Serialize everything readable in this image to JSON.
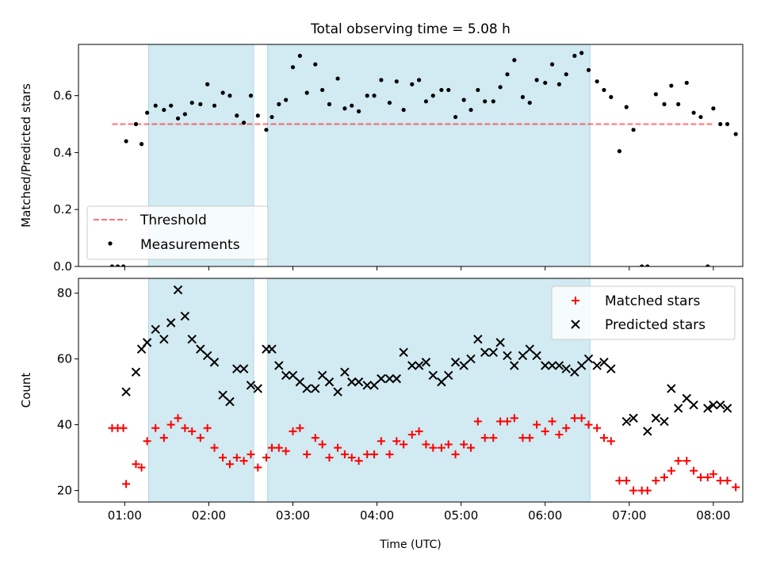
{
  "title": "Total observing time = 5.08 h",
  "xlabel": "Time (UTC)",
  "x_tick_labels": [
    "01:00",
    "02:00",
    "03:00",
    "04:00",
    "05:00",
    "06:00",
    "07:00",
    "08:00"
  ],
  "colors": {
    "shade": "#add8e6",
    "threshold": "#ff0000",
    "measurements": "#000000",
    "matched": "#ff0000",
    "predicted": "#000000"
  },
  "chart_data": [
    {
      "type": "scatter",
      "ylabel": "Matched/Predicted stars",
      "xlim": [
        "00:27",
        "08:21"
      ],
      "ylim": [
        0.0,
        0.78
      ],
      "yticks": [
        0.0,
        0.2,
        0.4,
        0.6
      ],
      "y_tick_labels": [
        "0.0",
        "0.2",
        "0.4",
        "0.6"
      ],
      "shaded_intervals": [
        [
          "01:17",
          "02:32"
        ],
        [
          "02:42",
          "06:32"
        ]
      ],
      "legend_loc": "lower left",
      "threshold": {
        "name": "Threshold",
        "value": 0.5,
        "x_range": [
          "00:51",
          "08:00"
        ],
        "style": "dashed"
      },
      "series": [
        {
          "name": "Measurements",
          "marker": "dot",
          "points": [
            [
              "00:51",
              0.0
            ],
            [
              "00:55",
              0.0
            ],
            [
              "00:59",
              0.0
            ],
            [
              "01:01",
              0.44
            ],
            [
              "01:08",
              0.5
            ],
            [
              "01:12",
              0.43
            ],
            [
              "01:16",
              0.54
            ],
            [
              "01:22",
              0.565
            ],
            [
              "01:28",
              0.55
            ],
            [
              "01:33",
              0.565
            ],
            [
              "01:38",
              0.52
            ],
            [
              "01:43",
              0.535
            ],
            [
              "01:48",
              0.575
            ],
            [
              "01:54",
              0.57
            ],
            [
              "01:59",
              0.64
            ],
            [
              "02:04",
              0.565
            ],
            [
              "02:10",
              0.61
            ],
            [
              "02:15",
              0.6
            ],
            [
              "02:20",
              0.53
            ],
            [
              "02:25",
              0.505
            ],
            [
              "02:30",
              0.6
            ],
            [
              "02:35",
              0.53
            ],
            [
              "02:41",
              0.48
            ],
            [
              "02:45",
              0.525
            ],
            [
              "02:50",
              0.57
            ],
            [
              "02:55",
              0.585
            ],
            [
              "03:00",
              0.7
            ],
            [
              "03:05",
              0.74
            ],
            [
              "03:10",
              0.61
            ],
            [
              "03:16",
              0.71
            ],
            [
              "03:21",
              0.62
            ],
            [
              "03:26",
              0.57
            ],
            [
              "03:32",
              0.66
            ],
            [
              "03:37",
              0.555
            ],
            [
              "03:42",
              0.565
            ],
            [
              "03:47",
              0.545
            ],
            [
              "03:53",
              0.6
            ],
            [
              "03:58",
              0.6
            ],
            [
              "04:03",
              0.655
            ],
            [
              "04:09",
              0.575
            ],
            [
              "04:14",
              0.65
            ],
            [
              "04:19",
              0.55
            ],
            [
              "04:25",
              0.64
            ],
            [
              "04:30",
              0.655
            ],
            [
              "04:35",
              0.58
            ],
            [
              "04:40",
              0.6
            ],
            [
              "04:46",
              0.62
            ],
            [
              "04:51",
              0.62
            ],
            [
              "04:56",
              0.525
            ],
            [
              "05:02",
              0.585
            ],
            [
              "05:07",
              0.55
            ],
            [
              "05:12",
              0.62
            ],
            [
              "05:17",
              0.58
            ],
            [
              "05:23",
              0.58
            ],
            [
              "05:28",
              0.63
            ],
            [
              "05:33",
              0.675
            ],
            [
              "05:38",
              0.725
            ],
            [
              "05:44",
              0.595
            ],
            [
              "05:49",
              0.575
            ],
            [
              "05:54",
              0.655
            ],
            [
              "06:00",
              0.645
            ],
            [
              "06:05",
              0.71
            ],
            [
              "06:10",
              0.64
            ],
            [
              "06:15",
              0.675
            ],
            [
              "06:21",
              0.74
            ],
            [
              "06:26",
              0.75
            ],
            [
              "06:31",
              0.69
            ],
            [
              "06:37",
              0.65
            ],
            [
              "06:42",
              0.62
            ],
            [
              "06:47",
              0.595
            ],
            [
              "06:53",
              0.405
            ],
            [
              "06:58",
              0.56
            ],
            [
              "07:03",
              0.48
            ],
            [
              "07:09",
              0.0
            ],
            [
              "07:13",
              0.0
            ],
            [
              "07:19",
              0.605
            ],
            [
              "07:25",
              0.57
            ],
            [
              "07:30",
              0.635
            ],
            [
              "07:35",
              0.57
            ],
            [
              "07:41",
              0.645
            ],
            [
              "07:46",
              0.54
            ],
            [
              "07:51",
              0.525
            ],
            [
              "07:56",
              0.0
            ],
            [
              "08:00",
              0.555
            ],
            [
              "08:05",
              0.5
            ],
            [
              "08:10",
              0.5
            ],
            [
              "08:16",
              0.465
            ]
          ]
        }
      ]
    },
    {
      "type": "scatter",
      "ylabel": "Count",
      "xlim": [
        "00:27",
        "08:21"
      ],
      "ylim": [
        16.5,
        84.5
      ],
      "yticks": [
        20,
        40,
        60,
        80
      ],
      "y_tick_labels": [
        "20",
        "40",
        "60",
        "80"
      ],
      "shaded_intervals": [
        [
          "01:17",
          "02:32"
        ],
        [
          "02:42",
          "06:32"
        ]
      ],
      "legend_loc": "upper right",
      "series": [
        {
          "name": "Matched stars",
          "marker": "plus",
          "points": [
            [
              "00:51",
              39
            ],
            [
              "00:55",
              39
            ],
            [
              "00:59",
              39
            ],
            [
              "01:01",
              22
            ],
            [
              "01:08",
              28
            ],
            [
              "01:12",
              27
            ],
            [
              "01:16",
              35
            ],
            [
              "01:22",
              39
            ],
            [
              "01:28",
              36
            ],
            [
              "01:33",
              40
            ],
            [
              "01:38",
              42
            ],
            [
              "01:43",
              39
            ],
            [
              "01:48",
              38
            ],
            [
              "01:54",
              36
            ],
            [
              "01:59",
              39
            ],
            [
              "02:04",
              33
            ],
            [
              "02:10",
              30
            ],
            [
              "02:15",
              28
            ],
            [
              "02:20",
              30
            ],
            [
              "02:25",
              29
            ],
            [
              "02:30",
              31
            ],
            [
              "02:35",
              27
            ],
            [
              "02:41",
              30
            ],
            [
              "02:45",
              33
            ],
            [
              "02:50",
              33
            ],
            [
              "02:55",
              32
            ],
            [
              "03:00",
              38
            ],
            [
              "03:05",
              39
            ],
            [
              "03:10",
              31
            ],
            [
              "03:16",
              36
            ],
            [
              "03:21",
              34
            ],
            [
              "03:26",
              30
            ],
            [
              "03:32",
              33
            ],
            [
              "03:37",
              31
            ],
            [
              "03:42",
              30
            ],
            [
              "03:47",
              29
            ],
            [
              "03:53",
              31
            ],
            [
              "03:58",
              31
            ],
            [
              "04:03",
              35
            ],
            [
              "04:09",
              31
            ],
            [
              "04:14",
              35
            ],
            [
              "04:19",
              34
            ],
            [
              "04:25",
              37
            ],
            [
              "04:30",
              38
            ],
            [
              "04:35",
              34
            ],
            [
              "04:40",
              33
            ],
            [
              "04:46",
              33
            ],
            [
              "04:51",
              34
            ],
            [
              "04:56",
              31
            ],
            [
              "05:02",
              34
            ],
            [
              "05:07",
              33
            ],
            [
              "05:12",
              41
            ],
            [
              "05:17",
              36
            ],
            [
              "05:23",
              36
            ],
            [
              "05:28",
              41
            ],
            [
              "05:33",
              41
            ],
            [
              "05:38",
              42
            ],
            [
              "05:44",
              36
            ],
            [
              "05:49",
              36
            ],
            [
              "05:54",
              40
            ],
            [
              "06:00",
              38
            ],
            [
              "06:05",
              41
            ],
            [
              "06:10",
              37
            ],
            [
              "06:15",
              39
            ],
            [
              "06:21",
              42
            ],
            [
              "06:26",
              42
            ],
            [
              "06:31",
              40
            ],
            [
              "06:37",
              39
            ],
            [
              "06:42",
              36
            ],
            [
              "06:47",
              35
            ],
            [
              "06:53",
              23
            ],
            [
              "06:58",
              23
            ],
            [
              "07:03",
              20
            ],
            [
              "07:09",
              20
            ],
            [
              "07:13",
              20
            ],
            [
              "07:19",
              23
            ],
            [
              "07:25",
              24
            ],
            [
              "07:30",
              26
            ],
            [
              "07:35",
              29
            ],
            [
              "07:41",
              29
            ],
            [
              "07:46",
              26
            ],
            [
              "07:51",
              24
            ],
            [
              "07:56",
              24
            ],
            [
              "08:00",
              25
            ],
            [
              "08:05",
              23
            ],
            [
              "08:10",
              23
            ],
            [
              "08:16",
              21
            ]
          ]
        },
        {
          "name": "Predicted stars",
          "marker": "cross",
          "points": [
            [
              "01:01",
              50
            ],
            [
              "01:08",
              56
            ],
            [
              "01:12",
              63
            ],
            [
              "01:16",
              65
            ],
            [
              "01:22",
              69
            ],
            [
              "01:28",
              66
            ],
            [
              "01:33",
              71
            ],
            [
              "01:38",
              81
            ],
            [
              "01:43",
              73
            ],
            [
              "01:48",
              66
            ],
            [
              "01:54",
              63
            ],
            [
              "01:59",
              61
            ],
            [
              "02:04",
              59
            ],
            [
              "02:10",
              49
            ],
            [
              "02:15",
              47
            ],
            [
              "02:20",
              57
            ],
            [
              "02:25",
              57
            ],
            [
              "02:30",
              52
            ],
            [
              "02:35",
              51
            ],
            [
              "02:41",
              63
            ],
            [
              "02:45",
              63
            ],
            [
              "02:50",
              58
            ],
            [
              "02:55",
              55
            ],
            [
              "03:00",
              55
            ],
            [
              "03:05",
              53
            ],
            [
              "03:10",
              51
            ],
            [
              "03:16",
              51
            ],
            [
              "03:21",
              55
            ],
            [
              "03:26",
              53
            ],
            [
              "03:32",
              50
            ],
            [
              "03:37",
              56
            ],
            [
              "03:42",
              53
            ],
            [
              "03:47",
              53
            ],
            [
              "03:53",
              52
            ],
            [
              "03:58",
              52
            ],
            [
              "04:03",
              54
            ],
            [
              "04:09",
              54
            ],
            [
              "04:14",
              54
            ],
            [
              "04:19",
              62
            ],
            [
              "04:25",
              58
            ],
            [
              "04:30",
              58
            ],
            [
              "04:35",
              59
            ],
            [
              "04:40",
              55
            ],
            [
              "04:46",
              53
            ],
            [
              "04:51",
              55
            ],
            [
              "04:56",
              59
            ],
            [
              "05:02",
              58
            ],
            [
              "05:07",
              60
            ],
            [
              "05:12",
              66
            ],
            [
              "05:17",
              62
            ],
            [
              "05:23",
              62
            ],
            [
              "05:28",
              65
            ],
            [
              "05:33",
              61
            ],
            [
              "05:38",
              58
            ],
            [
              "05:44",
              61
            ],
            [
              "05:49",
              63
            ],
            [
              "05:54",
              61
            ],
            [
              "06:00",
              58
            ],
            [
              "06:05",
              58
            ],
            [
              "06:10",
              58
            ],
            [
              "06:15",
              57
            ],
            [
              "06:21",
              56
            ],
            [
              "06:26",
              58
            ],
            [
              "06:31",
              60
            ],
            [
              "06:37",
              58
            ],
            [
              "06:42",
              59
            ],
            [
              "06:47",
              57
            ],
            [
              "06:58",
              41
            ],
            [
              "07:03",
              42
            ],
            [
              "07:13",
              38
            ],
            [
              "07:19",
              42
            ],
            [
              "07:25",
              41
            ],
            [
              "07:30",
              51
            ],
            [
              "07:35",
              45
            ],
            [
              "07:41",
              48
            ],
            [
              "07:46",
              46
            ],
            [
              "07:56",
              45
            ],
            [
              "08:00",
              46
            ],
            [
              "08:05",
              46
            ],
            [
              "08:10",
              45
            ]
          ]
        }
      ]
    }
  ]
}
